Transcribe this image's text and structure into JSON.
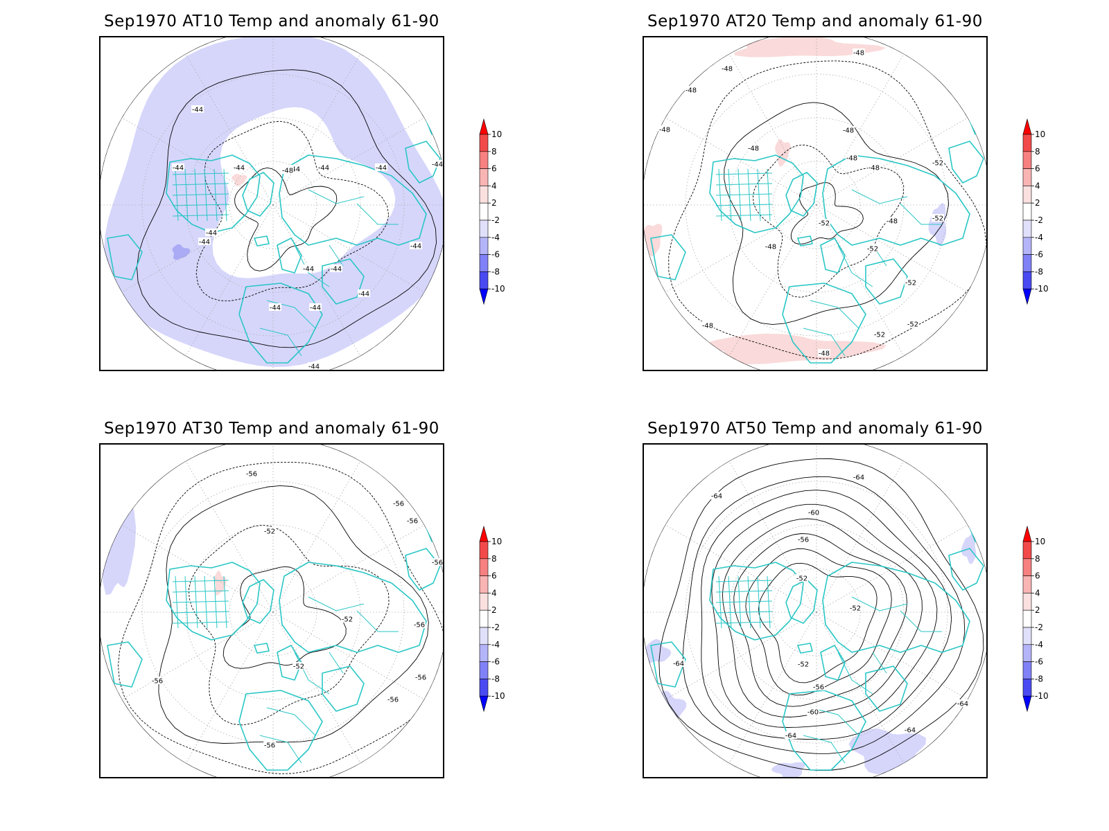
{
  "panels": [
    {
      "title": "Sep1970 AT10 Temp and anomaly 61-90",
      "contour_labels": [
        "-44",
        "-48"
      ],
      "dominant_anomaly": "negative",
      "anomaly_color": "#d6d6fb"
    },
    {
      "title": "Sep1970 AT20 Temp and anomaly 61-90",
      "contour_labels": [
        "-48",
        "-52"
      ],
      "dominant_anomaly": "positive",
      "anomaly_color": "#fadada"
    },
    {
      "title": "Sep1970 AT30 Temp and anomaly 61-90",
      "contour_labels": [
        "-52",
        "-56"
      ],
      "dominant_anomaly": "mixed",
      "anomaly_color": "#d6d6fb"
    },
    {
      "title": "Sep1970 AT50 Temp and anomaly 61-90",
      "contour_labels": [
        "-52",
        "-56",
        "-60",
        "-64"
      ],
      "dominant_anomaly": "negative",
      "anomaly_color": "#d6d6fb"
    }
  ],
  "colorbar": {
    "levels": [
      "10",
      "8",
      "6",
      "4",
      "2",
      "-2",
      "-4",
      "-6",
      "-8",
      "-10"
    ],
    "colors": [
      "#ff0000",
      "#f24a4a",
      "#f78080",
      "#f9b4b4",
      "#fbe0e0",
      "#ffffff",
      "#e0e0fb",
      "#b4b4f9",
      "#8080f7",
      "#4a4af2",
      "#0000ff"
    ]
  },
  "map_colors": {
    "coastline": "#2ac6c6",
    "contour": "#000000",
    "grid": "#aaaaaa"
  }
}
